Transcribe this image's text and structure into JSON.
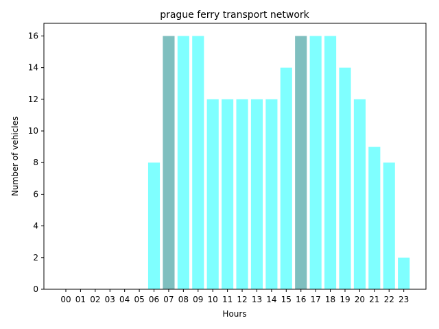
{
  "chart_data": {
    "type": "bar",
    "title": "prague ferry transport network",
    "xlabel": "Hours",
    "ylabel": "Number of vehicles",
    "categories": [
      "00",
      "01",
      "02",
      "03",
      "04",
      "05",
      "06",
      "07",
      "08",
      "09",
      "10",
      "11",
      "12",
      "13",
      "14",
      "15",
      "16",
      "17",
      "18",
      "19",
      "20",
      "21",
      "22",
      "23"
    ],
    "values": [
      0,
      0,
      0,
      0,
      0,
      0,
      8,
      16,
      16,
      16,
      12,
      12,
      12,
      12,
      12,
      14,
      16,
      16,
      16,
      14,
      12,
      9,
      8,
      2
    ],
    "highlighted_categories": [
      "07",
      "16"
    ],
    "ylim": [
      0,
      16.8
    ],
    "yticks": [
      0,
      2,
      4,
      6,
      8,
      10,
      12,
      14,
      16
    ],
    "grid": false,
    "colors": {
      "bar": "#7fffff",
      "highlight": "#7fbfbf"
    }
  }
}
